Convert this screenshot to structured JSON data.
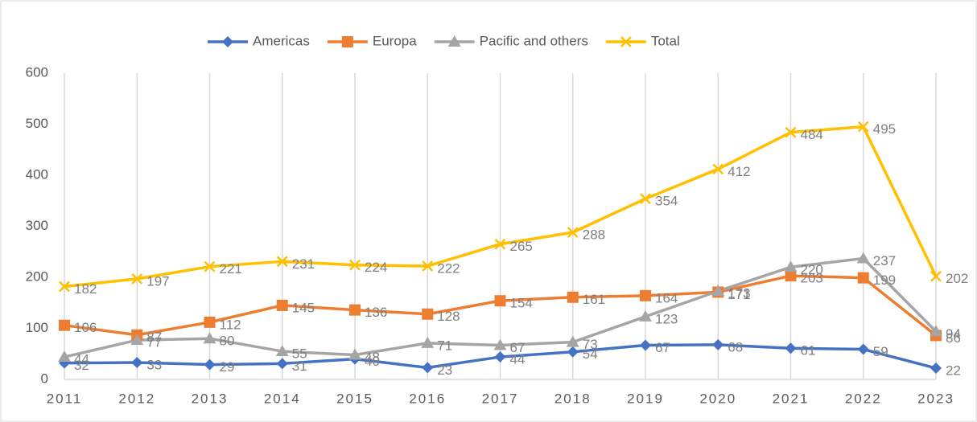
{
  "chart_data": {
    "type": "line",
    "categories": [
      "2011",
      "2012",
      "2013",
      "2014",
      "2015",
      "2016",
      "2017",
      "2018",
      "2019",
      "2020",
      "2021",
      "2022",
      "2023"
    ],
    "series": [
      {
        "name": "Americas",
        "color": "#4472c4",
        "marker": "diamond",
        "values": [
          32,
          33,
          29,
          31,
          40,
          23,
          44,
          54,
          67,
          68,
          61,
          59,
          22
        ]
      },
      {
        "name": "Europa",
        "color": "#ed7d31",
        "marker": "square",
        "values": [
          106,
          87,
          112,
          145,
          136,
          128,
          154,
          161,
          164,
          171,
          203,
          199,
          86
        ]
      },
      {
        "name": "Pacific and others",
        "color": "#a5a5a5",
        "marker": "triangle",
        "values": [
          44,
          77,
          80,
          55,
          48,
          71,
          67,
          73,
          123,
          173,
          220,
          237,
          94
        ]
      },
      {
        "name": "Total",
        "color": "#ffc000",
        "marker": "x",
        "values": [
          182,
          197,
          221,
          231,
          224,
          222,
          265,
          288,
          354,
          412,
          484,
          495,
          202
        ]
      }
    ],
    "ylim": [
      0,
      600
    ],
    "yticks": [
      0,
      100,
      200,
      300,
      400,
      500,
      600
    ],
    "grid": true,
    "legend": "top"
  }
}
